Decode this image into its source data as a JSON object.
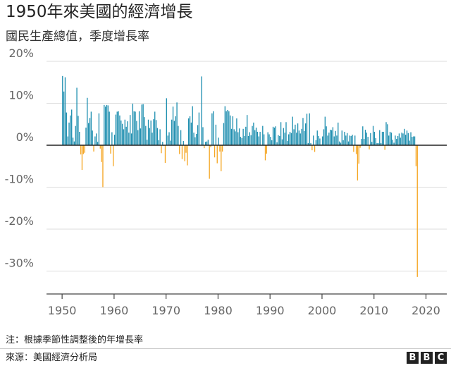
{
  "header": {
    "title": "1950年來美國的經濟增長",
    "subtitle": "國民生產總值，季度增長率"
  },
  "footer": {
    "note": "注：根據季節性調整後的年增長率",
    "source": "來源：美國經濟分析局",
    "logo_letters": [
      "B",
      "B",
      "C"
    ]
  },
  "colors": {
    "positive": "#1f8fb0",
    "negative": "#f5a623",
    "grid": "#dddddd",
    "zero_line": "#222222",
    "axis": "#444444"
  },
  "chart_data": {
    "type": "bar",
    "title": "1950年來美國的經濟增長",
    "subtitle": "國民生產總值，季度增長率",
    "xlabel": "",
    "ylabel": "",
    "x_start": 1950.0,
    "x_step": 0.25,
    "xlim": [
      1947,
      2024
    ],
    "ylim": [
      -33,
      21
    ],
    "xticks": [
      1950,
      1960,
      1970,
      1980,
      1990,
      2000,
      2010,
      2020
    ],
    "yticks": [
      20,
      10,
      0,
      -10,
      -20,
      -30
    ],
    "ytick_labels": [
      "20%",
      "10%",
      "0%",
      "-10%",
      "-20%",
      "-30%"
    ],
    "grid": "horizontal",
    "values": [
      16.5,
      12.8,
      16.2,
      7.8,
      2.1,
      5.4,
      7.1,
      8.5,
      1.8,
      0.9,
      4.6,
      13.7,
      7.0,
      3.2,
      -2.2,
      -5.9,
      -2.1,
      -1.8,
      4.2,
      11.3,
      5.3,
      6.5,
      8.0,
      3.5,
      -1.5,
      2.1,
      2.8,
      0.8,
      7.6,
      -0.8,
      -4.0,
      -10.0,
      9.6,
      9.2,
      9.6,
      9.5,
      8.0,
      -2.0,
      3.1,
      -5.0,
      2.5,
      7.3,
      8.0,
      8.1,
      7.1,
      5.9,
      5.1,
      3.8,
      6.1,
      4.4,
      5.7,
      3.0,
      7.2,
      2.8,
      9.9,
      8.1,
      8.0,
      5.8,
      3.6,
      8.1,
      4.0,
      9.7,
      9.8,
      6.7,
      4.6,
      1.3,
      6.1,
      4.1,
      5.9,
      3.0,
      6.2,
      8.0,
      6.0,
      4.1,
      1.2,
      3.8,
      -1.9,
      0.8,
      -0.2,
      -4.2,
      11.2,
      2.3,
      3.1,
      1.1,
      6.1,
      9.2,
      5.8,
      6.9,
      10.2,
      4.6,
      -2.1,
      3.6,
      -3.3,
      1.0,
      -3.8,
      -1.8,
      -4.8,
      6.4,
      6.9,
      5.4,
      9.3,
      3.0,
      1.9,
      2.7,
      4.8,
      7.8,
      0.1,
      16.4,
      4.3,
      -0.7,
      0.8,
      0.9,
      1.3,
      -8.0,
      -0.5,
      7.6,
      8.1,
      -2.9,
      4.9,
      -4.3,
      1.8,
      -1.5,
      -6.2,
      -1.5,
      5.3,
      9.3,
      8.1,
      8.4,
      8.1,
      7.1,
      3.9,
      6.9,
      3.8,
      3.3,
      6.4,
      3.1,
      4.0,
      2.0,
      1.7,
      3.9,
      2.2,
      4.4,
      7.2,
      2.2,
      3.1,
      2.4,
      4.6,
      5.4,
      3.6,
      4.2,
      3.2,
      2.1,
      3.2,
      0.1,
      4.6,
      2.6,
      -3.6,
      -2.0,
      3.1,
      2.6,
      2.0,
      1.2,
      4.4,
      4.2,
      4.5,
      0.7,
      2.4,
      2.2,
      5.5,
      1.4,
      4.1,
      3.0,
      5.5,
      1.0,
      2.6,
      3.2,
      2.9,
      6.8,
      3.8,
      4.9,
      3.0,
      5.2,
      3.5,
      2.8,
      3.9,
      6.5,
      3.4,
      5.2,
      7.5,
      0.5,
      7.6,
      0.5,
      -1.2,
      2.3,
      -1.6,
      1.2,
      3.5,
      2.2,
      1.6,
      0.2,
      2.1,
      3.8,
      6.8,
      4.5,
      2.3,
      3.0,
      3.7,
      3.6,
      4.3,
      2.1,
      3.4,
      2.3,
      5.4,
      0.9,
      0.6,
      3.5,
      1.2,
      3.2,
      2.3,
      2.9,
      0.9,
      2.3,
      2.2,
      2.5,
      -1.6,
      2.3,
      -2.1,
      -8.4,
      -4.4,
      -0.6,
      1.5,
      4.5,
      1.5,
      3.7,
      3.0,
      2.0,
      -1.0,
      2.9,
      0.8,
      4.6,
      3.2,
      1.7,
      0.5,
      0.5,
      3.6,
      0.5,
      3.2,
      3.2,
      -1.1,
      5.5,
      5.0,
      2.3,
      3.2,
      3.0,
      1.3,
      0.6,
      2.3,
      1.5,
      2.2,
      2.8,
      1.8,
      3.0,
      2.8,
      3.9,
      2.5,
      3.5,
      2.9,
      1.1,
      3.1,
      2.0,
      2.1,
      2.1,
      -5.0,
      -31.4
    ]
  }
}
